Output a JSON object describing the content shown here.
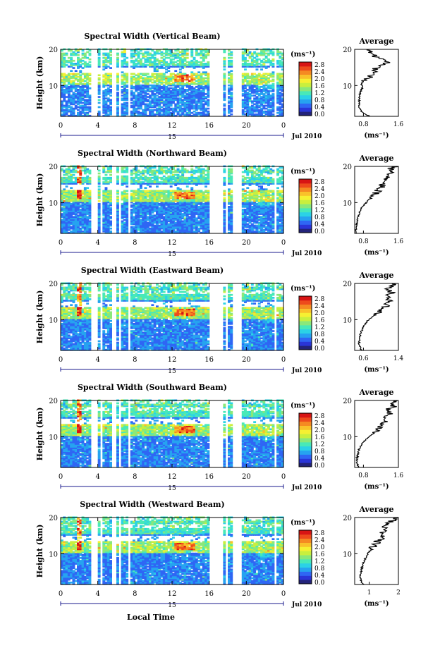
{
  "figure": {
    "xlabel": "Local Time",
    "ylabel": "Height (km)",
    "date_label": "Jul 2010",
    "day_label": "15",
    "colorbar_unit": "(ms⁻¹)",
    "avg_title": "Average",
    "avg_xlabel": "(ms⁻¹)"
  },
  "colors": {
    "scale": [
      "#23237a",
      "#2a35d8",
      "#2f66f4",
      "#26a3f0",
      "#2bd2e6",
      "#48e9b8",
      "#8ae87a",
      "#c9ef3e",
      "#f6f032",
      "#f9c12a",
      "#f58a22",
      "#ee4a1c",
      "#d81414"
    ]
  },
  "chart_data": [
    {
      "type": "heatmap",
      "title": "Spectral Width (Vertical Beam)",
      "x_ticks": [
        "0",
        "4",
        "8",
        "12",
        "16",
        "20",
        "0"
      ],
      "y_ticks": [
        "20",
        "10"
      ],
      "xlim": [
        0,
        24
      ],
      "ylim": [
        1.5,
        20
      ],
      "colorbar_ticks": [
        "2.8",
        "2.4",
        "2.0",
        "1.6",
        "1.2",
        "0.8",
        "0.4",
        "0.0"
      ],
      "avg_profile": {
        "x_ticks": [
          "0.8",
          "1.6"
        ],
        "xlim": [
          0.6,
          1.6
        ],
        "height": [
          1.5,
          2.5,
          3.5,
          4.5,
          5.5,
          6.5,
          7.5,
          8.5,
          9.5,
          10.5,
          11.5,
          12.5,
          13.5,
          14.5,
          15.5,
          16.5,
          17.5,
          18.5,
          19.5,
          20.0
        ],
        "width": [
          0.95,
          0.78,
          0.72,
          0.7,
          0.71,
          0.7,
          0.72,
          0.74,
          0.78,
          0.75,
          0.85,
          0.95,
          1.1,
          1.05,
          1.2,
          1.35,
          1.15,
          1.0,
          0.98,
          0.95
        ]
      }
    },
    {
      "type": "heatmap",
      "title": "Spectral Width (Northward Beam)",
      "x_ticks": [
        "0",
        "4",
        "8",
        "12",
        "16",
        "20",
        "0"
      ],
      "y_ticks": [
        "20",
        "10"
      ],
      "xlim": [
        0,
        24
      ],
      "ylim": [
        1.5,
        20
      ],
      "colorbar_ticks": [
        "2.8",
        "2.4",
        "2.0",
        "1.6",
        "1.2",
        "0.8",
        "0.4",
        "0.0"
      ],
      "avg_profile": {
        "x_ticks": [
          "0.8",
          "1.6"
        ],
        "xlim": [
          0.6,
          1.6
        ],
        "height": [
          1.5,
          2.5,
          3.5,
          4.5,
          5.5,
          6.5,
          7.5,
          8.5,
          9.5,
          10.5,
          11.5,
          12.5,
          13.5,
          14.5,
          15.5,
          16.5,
          17.5,
          18.5,
          19.5,
          20.0
        ],
        "width": [
          0.65,
          0.63,
          0.64,
          0.66,
          0.67,
          0.69,
          0.72,
          0.76,
          0.82,
          0.9,
          1.0,
          1.08,
          1.15,
          1.25,
          1.22,
          1.35,
          1.3,
          1.45,
          1.4,
          1.55
        ]
      }
    },
    {
      "type": "heatmap",
      "title": "Spectral Width (Eastward Beam)",
      "x_ticks": [
        "0",
        "4",
        "8",
        "12",
        "16",
        "20",
        "0"
      ],
      "y_ticks": [
        "20",
        "10"
      ],
      "xlim": [
        0,
        24
      ],
      "ylim": [
        1.5,
        20
      ],
      "colorbar_ticks": [
        "2.8",
        "2.4",
        "2.0",
        "1.6",
        "1.2",
        "0.8",
        "0.4",
        "0.0"
      ],
      "avg_profile": {
        "x_ticks": [
          "0.6",
          "1.4"
        ],
        "xlim": [
          0.4,
          1.4
        ],
        "height": [
          1.5,
          2.5,
          3.5,
          4.5,
          5.5,
          6.5,
          7.5,
          8.5,
          9.5,
          10.5,
          11.5,
          12.5,
          13.5,
          14.5,
          15.5,
          16.5,
          17.5,
          18.5,
          19.5,
          20.0
        ],
        "width": [
          0.55,
          0.52,
          0.5,
          0.51,
          0.52,
          0.55,
          0.58,
          0.62,
          0.68,
          0.78,
          0.9,
          1.0,
          1.1,
          1.15,
          1.2,
          1.12,
          1.25,
          1.18,
          1.3,
          1.25
        ]
      }
    },
    {
      "type": "heatmap",
      "title": "Spectral Width (Southward Beam)",
      "x_ticks": [
        "0",
        "4",
        "8",
        "12",
        "16",
        "20",
        "0"
      ],
      "y_ticks": [
        "20",
        "10"
      ],
      "xlim": [
        0,
        24
      ],
      "ylim": [
        1.5,
        20
      ],
      "colorbar_ticks": [
        "2.8",
        "2.4",
        "2.0",
        "1.6",
        "1.2",
        "0.8",
        "0.4",
        "0.0"
      ],
      "avg_profile": {
        "x_ticks": [
          "0.8",
          "1.6"
        ],
        "xlim": [
          0.6,
          1.6
        ],
        "height": [
          1.5,
          2.5,
          3.5,
          4.5,
          5.5,
          6.5,
          7.5,
          8.5,
          9.5,
          10.5,
          11.5,
          12.5,
          13.5,
          14.5,
          15.5,
          16.5,
          17.5,
          18.5,
          19.5,
          20.0
        ],
        "width": [
          0.7,
          0.66,
          0.65,
          0.66,
          0.68,
          0.7,
          0.74,
          0.8,
          0.88,
          0.98,
          1.08,
          1.15,
          1.22,
          1.3,
          1.28,
          1.42,
          1.35,
          1.5,
          1.45,
          1.55
        ]
      }
    },
    {
      "type": "heatmap",
      "title": "Spectral Width (Westward Beam)",
      "x_ticks": [
        "0",
        "4",
        "8",
        "12",
        "16",
        "20",
        "0"
      ],
      "y_ticks": [
        "20",
        "10"
      ],
      "xlim": [
        0,
        24
      ],
      "ylim": [
        1.5,
        20
      ],
      "colorbar_ticks": [
        "2.8",
        "2.4",
        "2.0",
        "1.6",
        "1.2",
        "0.8",
        "0.4",
        "0.0"
      ],
      "avg_profile": {
        "x_ticks": [
          "1",
          "2"
        ],
        "xlim": [
          0.5,
          2.0
        ],
        "height": [
          1.5,
          2.5,
          3.5,
          4.5,
          5.5,
          6.5,
          7.5,
          8.5,
          9.5,
          10.5,
          11.5,
          12.5,
          13.5,
          14.5,
          15.5,
          16.5,
          17.5,
          18.5,
          19.5,
          20.0
        ],
        "width": [
          0.8,
          0.72,
          0.7,
          0.71,
          0.73,
          0.76,
          0.8,
          0.85,
          0.92,
          1.0,
          1.1,
          1.22,
          1.3,
          1.45,
          1.4,
          1.55,
          1.5,
          1.7,
          1.85,
          1.95
        ]
      }
    }
  ]
}
